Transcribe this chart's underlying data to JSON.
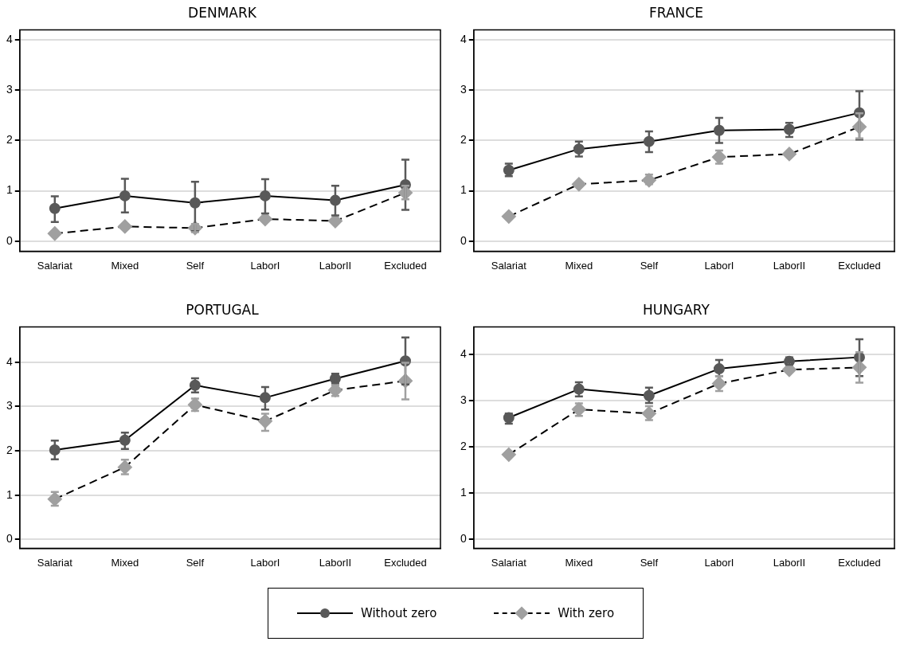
{
  "chart_data": [
    {
      "type": "line",
      "title": "DENMARK",
      "categories": [
        "Salariat",
        "Mixed",
        "Self",
        "LaborI",
        "LaborII",
        "Excluded"
      ],
      "ylim": [
        -0.2,
        4.2
      ],
      "yticks": [
        0,
        1,
        2,
        3,
        4
      ],
      "grid": "y",
      "legend": "bottom",
      "series": [
        {
          "name": "Without zero",
          "color": "#595959",
          "marker": "circle",
          "line_style": "solid",
          "values": [
            0.65,
            0.9,
            0.76,
            0.9,
            0.81,
            1.12
          ],
          "errors": [
            [
              0.38,
              0.89
            ],
            [
              0.57,
              1.24
            ],
            [
              0.2,
              1.18
            ],
            [
              0.55,
              1.23
            ],
            [
              0.51,
              1.1
            ],
            [
              0.62,
              1.62
            ]
          ]
        },
        {
          "name": "With zero",
          "color": "#a0a0a0",
          "marker": "diamond",
          "line_style": "dashed",
          "values": [
            0.15,
            0.29,
            0.26,
            0.44,
            0.4,
            0.96
          ],
          "errors": [
            null,
            null,
            [
              0.18,
              0.34
            ],
            null,
            null,
            [
              0.83,
              1.1
            ]
          ]
        }
      ]
    },
    {
      "type": "line",
      "title": "FRANCE",
      "categories": [
        "Salariat",
        "Mixed",
        "Self",
        "LaborI",
        "LaborII",
        "Excluded"
      ],
      "ylim": [
        -0.2,
        4.2
      ],
      "yticks": [
        0,
        1,
        2,
        3,
        4
      ],
      "grid": "y",
      "series": [
        {
          "color": "#595959",
          "marker": "circle",
          "line_style": "solid",
          "values": [
            1.41,
            1.83,
            1.98,
            2.2,
            2.22,
            2.55
          ],
          "errors": [
            [
              1.29,
              1.54
            ],
            [
              1.68,
              1.98
            ],
            [
              1.77,
              2.18
            ],
            [
              1.95,
              2.45
            ],
            [
              2.07,
              2.35
            ],
            [
              2.02,
              2.98
            ]
          ]
        },
        {
          "color": "#a0a0a0",
          "marker": "diamond",
          "line_style": "dashed",
          "values": [
            0.49,
            1.13,
            1.21,
            1.67,
            1.73,
            2.27
          ],
          "errors": [
            null,
            null,
            [
              1.13,
              1.32
            ],
            [
              1.54,
              1.8
            ],
            null,
            [
              2.04,
              2.54
            ]
          ]
        }
      ]
    },
    {
      "type": "line",
      "title": "PORTUGAL",
      "categories": [
        "Salariat",
        "Mixed",
        "Self",
        "LaborI",
        "LaborII",
        "Excluded"
      ],
      "ylim": [
        -0.2,
        4.8
      ],
      "yticks": [
        0,
        1,
        2,
        3,
        4
      ],
      "grid": "y",
      "series": [
        {
          "color": "#595959",
          "marker": "circle",
          "line_style": "solid",
          "values": [
            2.02,
            2.24,
            3.48,
            3.2,
            3.63,
            4.03
          ],
          "errors": [
            [
              1.81,
              2.23
            ],
            [
              2.04,
              2.41
            ],
            [
              3.32,
              3.64
            ],
            [
              2.93,
              3.44
            ],
            [
              3.52,
              3.74
            ],
            [
              3.5,
              4.56
            ]
          ]
        },
        {
          "color": "#a0a0a0",
          "marker": "diamond",
          "line_style": "dashed",
          "values": [
            0.91,
            1.63,
            3.04,
            2.67,
            3.37,
            3.58
          ],
          "errors": [
            [
              0.76,
              1.07
            ],
            [
              1.47,
              1.8
            ],
            [
              2.9,
              3.18
            ],
            [
              2.45,
              2.84
            ],
            [
              3.24,
              3.48
            ],
            [
              3.16,
              3.99
            ]
          ]
        }
      ]
    },
    {
      "type": "line",
      "title": "HUNGARY",
      "categories": [
        "Salariat",
        "Mixed",
        "Self",
        "LaborI",
        "LaborII",
        "Excluded"
      ],
      "ylim": [
        -0.2,
        4.6
      ],
      "yticks": [
        0,
        1,
        2,
        3,
        4
      ],
      "grid": "y",
      "series": [
        {
          "color": "#595959",
          "marker": "circle",
          "line_style": "solid",
          "values": [
            2.63,
            3.25,
            3.11,
            3.69,
            3.85,
            3.94
          ],
          "errors": [
            [
              2.5,
              2.72
            ],
            [
              3.09,
              3.4
            ],
            [
              2.95,
              3.28
            ],
            [
              3.53,
              3.88
            ],
            [
              3.78,
              3.94
            ],
            [
              3.53,
              4.33
            ]
          ]
        },
        {
          "color": "#a0a0a0",
          "marker": "diamond",
          "line_style": "dashed",
          "values": [
            1.83,
            2.81,
            2.72,
            3.37,
            3.67,
            3.72
          ],
          "errors": [
            null,
            [
              2.67,
              2.94
            ],
            [
              2.58,
              2.88
            ],
            [
              3.21,
              3.53
            ],
            null,
            [
              3.39,
              4.05
            ]
          ]
        }
      ]
    }
  ]
}
